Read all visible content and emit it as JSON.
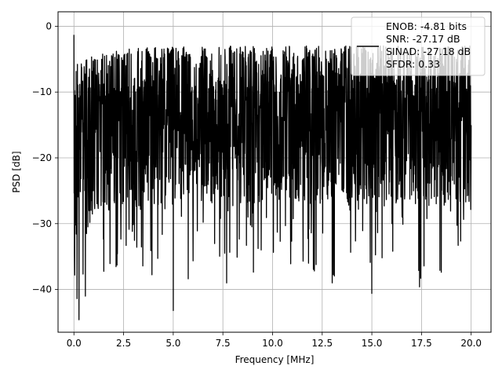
{
  "chart_data": {
    "type": "line",
    "xlabel": "Frequency [MHz]",
    "ylabel": "PSD [dB]",
    "xlim": [
      -0.8,
      21.0
    ],
    "ylim": [
      -46.5,
      2.2
    ],
    "x_ticks": [
      0.0,
      2.5,
      5.0,
      7.5,
      10.0,
      12.5,
      15.0,
      17.5,
      20.0
    ],
    "x_tick_labels": [
      "0.0",
      "2.5",
      "5.0",
      "7.5",
      "10.0",
      "12.5",
      "15.0",
      "17.5",
      "20.0"
    ],
    "y_ticks": [
      0,
      -10,
      -20,
      -30,
      -40
    ],
    "y_tick_labels": [
      "0",
      "−10",
      "−20",
      "−30",
      "−40"
    ],
    "grid": true,
    "legend_position": "top-right",
    "series": [
      {
        "color": "#000000",
        "x_range": [
          0.0,
          20.0
        ],
        "num_points": 2048,
        "approx_value_range": [
          -44.6,
          -1.3
        ],
        "notable_points": [
          {
            "x": 0.0,
            "y": -1.3
          },
          {
            "x": 0.25,
            "y": -44.6
          },
          {
            "x": 5.0,
            "y": -43.2
          },
          {
            "x": 15.0,
            "y": -40.6
          },
          {
            "x": 17.4,
            "y": -39.6
          },
          {
            "x": 13.0,
            "y": -39.0
          }
        ]
      }
    ],
    "legend_lines": [
      "ENOB: -4.81 bits",
      "SNR: -27.17 dB",
      "SINAD: -27.18 dB",
      "SFDR: 0.33"
    ]
  }
}
